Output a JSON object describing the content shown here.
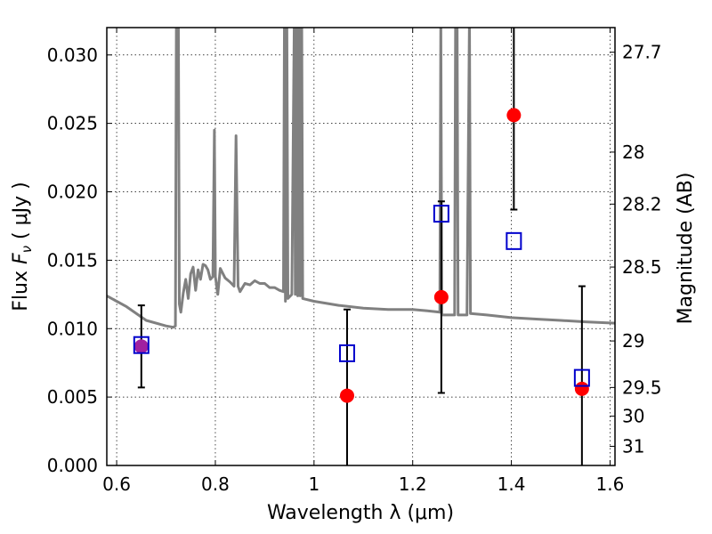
{
  "chart_data": {
    "type": "scatter",
    "xlabel": "Wavelength  λ (μm)",
    "ylabel_parts": [
      "Flux ",
      "F",
      "ν",
      "  ( μJy )"
    ],
    "y2label": "Magnitude (AB)",
    "xlim": [
      0.58,
      1.61
    ],
    "ylim": [
      0.0,
      0.032
    ],
    "grid": true,
    "x_ticks": [
      0.6,
      0.8,
      1.0,
      1.2,
      1.4,
      1.6
    ],
    "x_tick_labels": [
      "0.6",
      "0.8",
      "1",
      "1.2",
      "1.4",
      "1.6"
    ],
    "y_ticks": [
      0.0,
      0.005,
      0.01,
      0.015,
      0.02,
      0.025,
      0.03
    ],
    "y_tick_labels": [
      "0.000",
      "0.005",
      "0.010",
      "0.015",
      "0.020",
      "0.025",
      "0.030"
    ],
    "y2_ticks": [
      {
        "label": "27.7",
        "flux": 0.0302
      },
      {
        "label": "28",
        "flux": 0.0229
      },
      {
        "label": "28.2",
        "flux": 0.0191
      },
      {
        "label": "28.5",
        "flux": 0.0145
      },
      {
        "label": "29",
        "flux": 0.0091
      },
      {
        "label": "29.5",
        "flux": 0.0057
      },
      {
        "label": "30",
        "flux": 0.0036
      },
      {
        "label": "31",
        "flux": 0.0014
      }
    ],
    "observed": {
      "color": "#ff0000",
      "marker": "circle",
      "points": [
        {
          "x": 0.65,
          "y": 0.0087,
          "err": 0.003
        },
        {
          "x": 1.067,
          "y": 0.0051,
          "err": 0.0063
        },
        {
          "x": 1.258,
          "y": 0.0123,
          "err": 0.007
        },
        {
          "x": 1.405,
          "y": 0.0256,
          "err": 0.0069
        },
        {
          "x": 1.543,
          "y": 0.0056,
          "err": 0.0075
        }
      ]
    },
    "model_points": {
      "color": "#0000cc",
      "marker": "open-square",
      "points": [
        {
          "x": 0.65,
          "y": 0.0088
        },
        {
          "x": 1.067,
          "y": 0.0082
        },
        {
          "x": 1.258,
          "y": 0.0184
        },
        {
          "x": 1.405,
          "y": 0.0164
        },
        {
          "x": 1.543,
          "y": 0.0064
        }
      ]
    },
    "overlap_color": "#a020a0",
    "spectrum": {
      "color": "#808080",
      "points": [
        [
          0.58,
          0.0124
        ],
        [
          0.62,
          0.0116
        ],
        [
          0.66,
          0.0106
        ],
        [
          0.7,
          0.0102
        ],
        [
          0.715,
          0.0101
        ],
        [
          0.719,
          0.0102
        ],
        [
          0.721,
          0.033
        ],
        [
          0.725,
          0.033
        ],
        [
          0.727,
          0.0118
        ],
        [
          0.73,
          0.0112
        ],
        [
          0.735,
          0.0126
        ],
        [
          0.74,
          0.0136
        ],
        [
          0.745,
          0.0122
        ],
        [
          0.75,
          0.014
        ],
        [
          0.755,
          0.0145
        ],
        [
          0.76,
          0.0128
        ],
        [
          0.765,
          0.0143
        ],
        [
          0.77,
          0.0136
        ],
        [
          0.775,
          0.0147
        ],
        [
          0.78,
          0.0146
        ],
        [
          0.785,
          0.0143
        ],
        [
          0.79,
          0.0136
        ],
        [
          0.795,
          0.0138
        ],
        [
          0.798,
          0.0245
        ],
        [
          0.8,
          0.0138
        ],
        [
          0.805,
          0.0125
        ],
        [
          0.81,
          0.0144
        ],
        [
          0.82,
          0.0137
        ],
        [
          0.83,
          0.0134
        ],
        [
          0.838,
          0.0131
        ],
        [
          0.842,
          0.0241
        ],
        [
          0.846,
          0.0131
        ],
        [
          0.85,
          0.0127
        ],
        [
          0.86,
          0.0133
        ],
        [
          0.87,
          0.0132
        ],
        [
          0.88,
          0.0135
        ],
        [
          0.89,
          0.0133
        ],
        [
          0.9,
          0.0133
        ],
        [
          0.91,
          0.013
        ],
        [
          0.92,
          0.013
        ],
        [
          0.93,
          0.0128
        ],
        [
          0.938,
          0.0127
        ],
        [
          0.94,
          0.033
        ],
        [
          0.942,
          0.012
        ],
        [
          0.945,
          0.033
        ],
        [
          0.947,
          0.0122
        ],
        [
          0.955,
          0.0125
        ],
        [
          0.96,
          0.033
        ],
        [
          0.962,
          0.0125
        ],
        [
          0.965,
          0.033
        ],
        [
          0.967,
          0.0124
        ],
        [
          0.97,
          0.033
        ],
        [
          0.972,
          0.0124
        ],
        [
          0.975,
          0.033
        ],
        [
          0.977,
          0.0122
        ],
        [
          1.0,
          0.012
        ],
        [
          1.05,
          0.0117
        ],
        [
          1.1,
          0.0115
        ],
        [
          1.15,
          0.0114
        ],
        [
          1.2,
          0.0114
        ],
        [
          1.23,
          0.0113
        ],
        [
          1.255,
          0.0112
        ],
        [
          1.257,
          0.033
        ],
        [
          1.259,
          0.011
        ],
        [
          1.285,
          0.011
        ],
        [
          1.287,
          0.033
        ],
        [
          1.29,
          0.033
        ],
        [
          1.292,
          0.011
        ],
        [
          1.31,
          0.011
        ],
        [
          1.315,
          0.033
        ],
        [
          1.317,
          0.0111
        ],
        [
          1.35,
          0.011
        ],
        [
          1.4,
          0.0108
        ],
        [
          1.45,
          0.0107
        ],
        [
          1.5,
          0.0106
        ],
        [
          1.55,
          0.0105
        ],
        [
          1.61,
          0.0104
        ]
      ]
    }
  }
}
